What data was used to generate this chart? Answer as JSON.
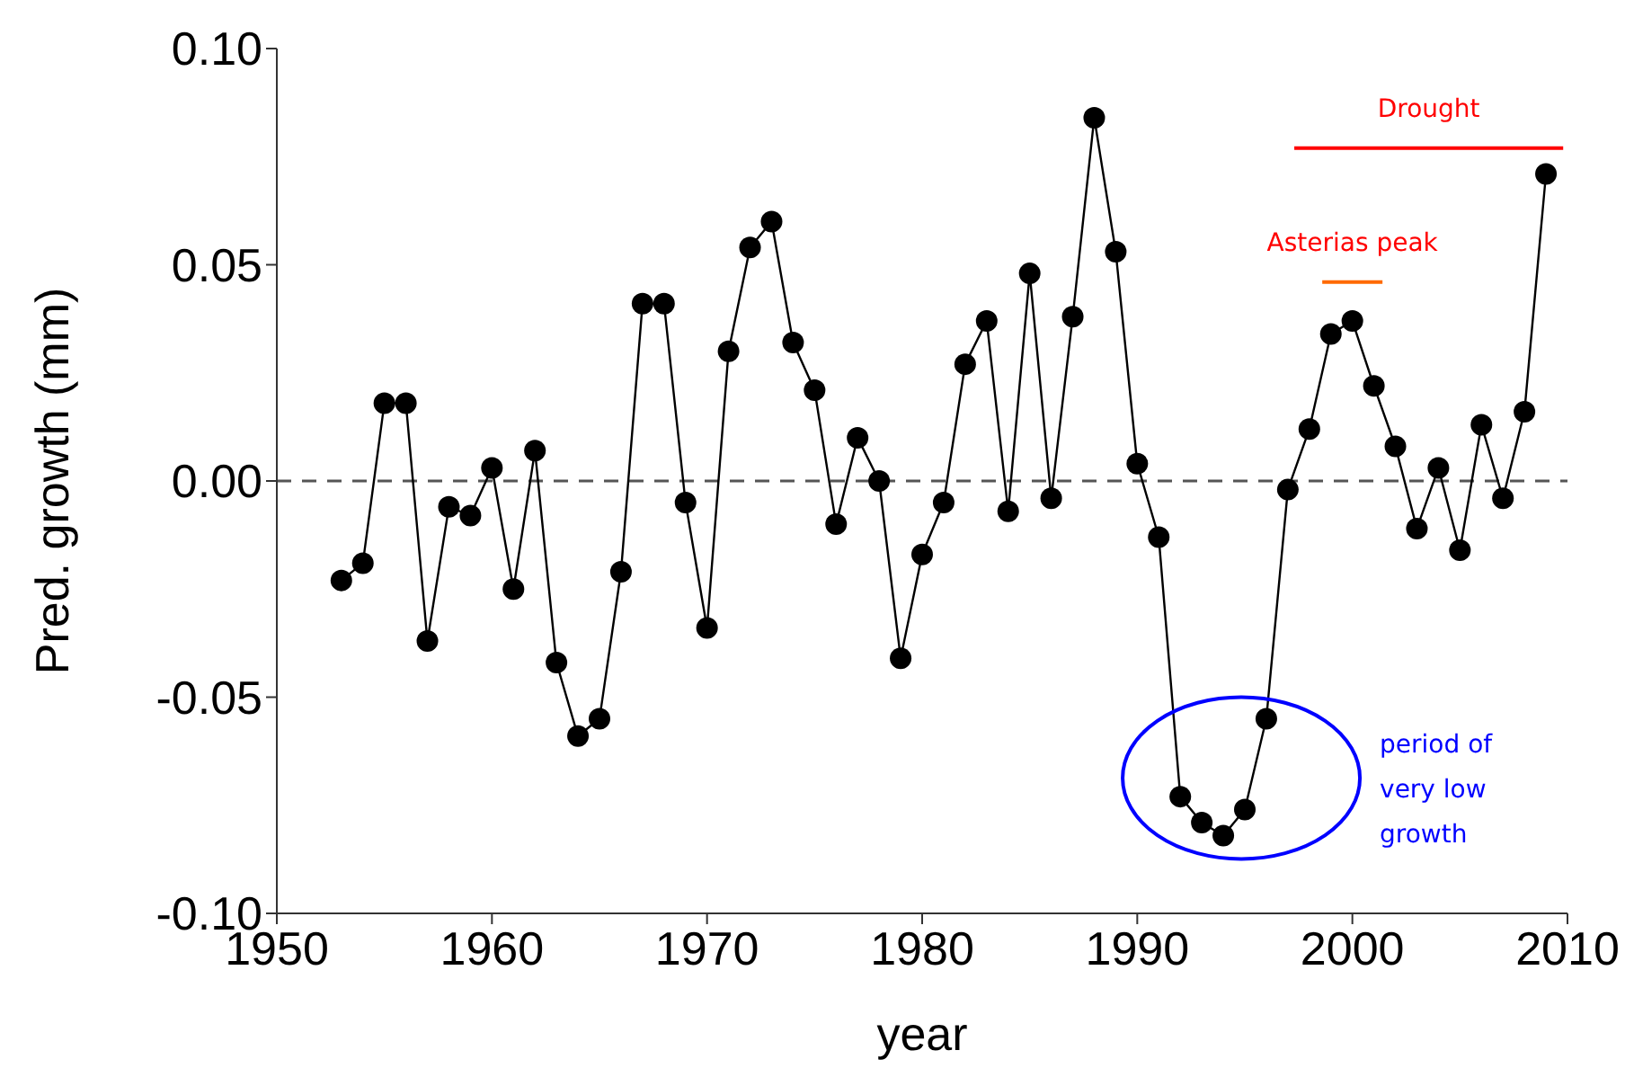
{
  "chart_data": {
    "type": "line",
    "xlabel": "year",
    "ylabel": "Pred. growth (mm)",
    "xlim": [
      1950,
      2010
    ],
    "xticks": [
      1950,
      1960,
      1970,
      1980,
      1990,
      2000,
      2010
    ],
    "ylim": [
      -0.1,
      0.1
    ],
    "yticks": [
      {
        "value": -0.1,
        "label": "-0.10"
      },
      {
        "value": -0.05,
        "label": "-0.05"
      },
      {
        "value": 0,
        "label": "0.00"
      },
      {
        "value": 0.05,
        "label": "0.05"
      },
      {
        "value": 0.1,
        "label": "0.10"
      }
    ],
    "line_style": "solid",
    "ref_lines": [
      {
        "axis": "y",
        "value": 0,
        "color": "#555555",
        "line_style": "dashed"
      }
    ],
    "series": [
      {
        "color": "#000000",
        "marker": "circle",
        "x": [
          1953,
          1954,
          1955,
          1956,
          1957,
          1958,
          1959,
          1960,
          1961,
          1962,
          1963,
          1964,
          1965,
          1966,
          1967,
          1968,
          1969,
          1970,
          1971,
          1972,
          1973,
          1974,
          1975,
          1976,
          1977,
          1978,
          1979,
          1980,
          1981,
          1982,
          1983,
          1984,
          1985,
          1986,
          1987,
          1988,
          1989,
          1990,
          1991,
          1992,
          1993,
          1994,
          1995,
          1996,
          1997,
          1998,
          1999,
          2000,
          2001,
          2002,
          2003,
          2004,
          2005,
          2006,
          2007,
          2008,
          2009
        ],
        "values": [
          -0.023,
          -0.019,
          0.018,
          0.018,
          -0.037,
          -0.006,
          -0.008,
          0.003,
          -0.025,
          0.007,
          -0.042,
          -0.059,
          -0.055,
          -0.021,
          0.041,
          0.041,
          -0.005,
          -0.034,
          0.03,
          0.054,
          0.06,
          0.032,
          0.021,
          -0.01,
          0.01,
          0.0,
          -0.041,
          -0.017,
          -0.005,
          0.027,
          0.037,
          -0.007,
          0.048,
          -0.004,
          0.038,
          0.084,
          0.053,
          0.004,
          -0.013,
          -0.073,
          -0.079,
          -0.082,
          -0.076,
          -0.055,
          -0.002,
          0.012,
          0.034,
          0.037,
          0.022,
          0.008,
          -0.011,
          0.003,
          -0.016,
          0.013,
          -0.004,
          0.016,
          0.071
        ]
      },
      {
        "color": "#ff0000",
        "marker": "none",
        "x": [
          1997.3,
          2009.8
        ],
        "values": [
          0.077,
          0.077
        ]
      },
      {
        "color": "#ff6a00",
        "marker": "none",
        "x": [
          1998.6,
          2001.4
        ],
        "values": [
          0.046,
          0.046
        ]
      }
    ],
    "annotations": [
      "Drought",
      "Asterias peak",
      "period of very low growth"
    ]
  }
}
